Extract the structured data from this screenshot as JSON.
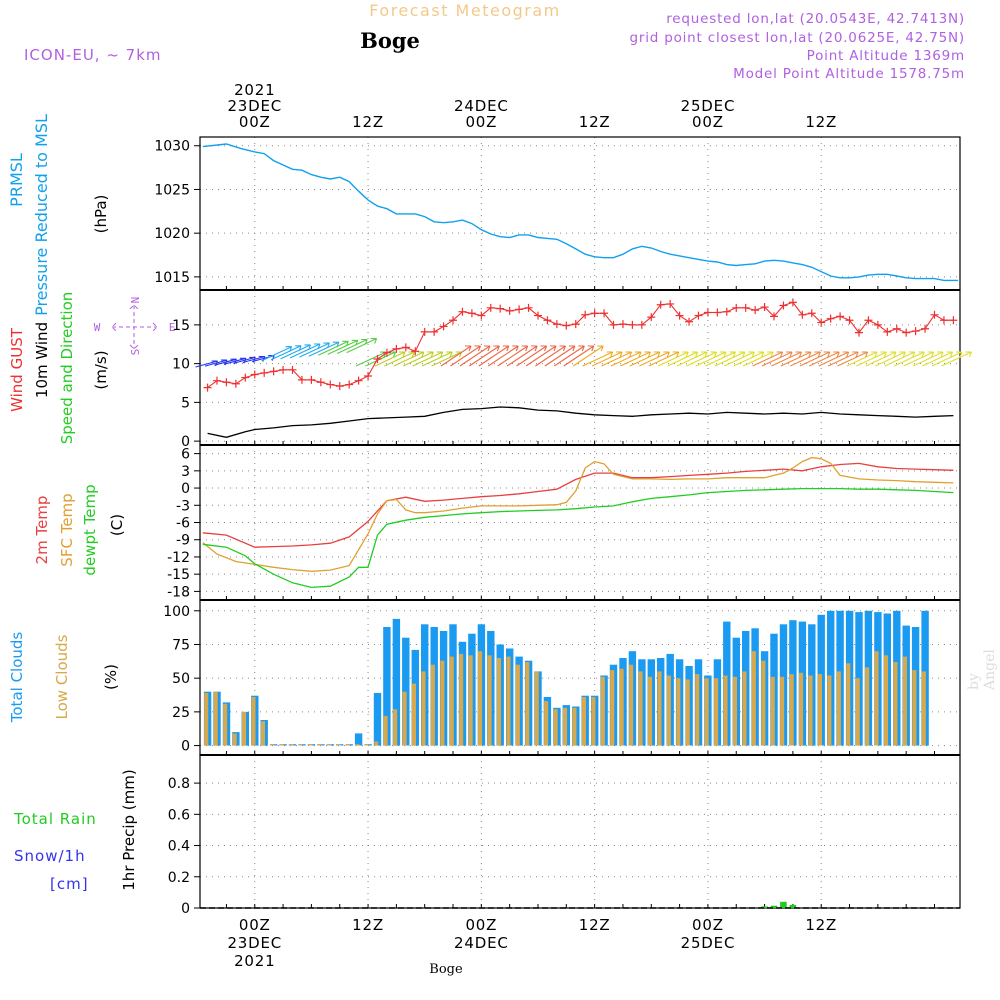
{
  "header": {
    "chart_title": "Forecast Meteogram",
    "location": "Boge",
    "model": "ICON-EU, ~ 7km",
    "requested": "requested lon,lat (20.0543E, 42.7413N)",
    "grid_point": "grid point closest lon,lat (20.0625E, 42.75N)",
    "point_altitude": "Point Altitude 1369m",
    "model_altitude": "Model Point Altitude 1578.75m",
    "watermark": "by Angel",
    "footer_location": "Boge"
  },
  "colors": {
    "pressure": "#11a0ee",
    "gust": "#ee3030",
    "wind": "#000000",
    "temp2m": "#e84040",
    "sfc": "#e0a030",
    "dewpt": "#22cc22",
    "total_cloud": "#1a9af0",
    "low_cloud": "#d8a84c",
    "rain": "#22cc22",
    "snow": "#3333ee",
    "header_title": "#f3c98a",
    "model_text": "#b060e0"
  },
  "time_axis": {
    "top_labels": [
      {
        "hour": 0,
        "lines": [
          "2021",
          "23DEC",
          "00Z"
        ]
      },
      {
        "hour": 12,
        "lines": [
          "12Z"
        ]
      },
      {
        "hour": 24,
        "lines": [
          "24DEC",
          "00Z"
        ]
      },
      {
        "hour": 36,
        "lines": [
          "12Z"
        ]
      },
      {
        "hour": 48,
        "lines": [
          "25DEC",
          "00Z"
        ]
      },
      {
        "hour": 60,
        "lines": [
          "12Z"
        ]
      }
    ],
    "bottom_labels": [
      {
        "hour": 0,
        "lines": [
          "00Z",
          "23DEC",
          "2021"
        ]
      },
      {
        "hour": 12,
        "lines": [
          "12Z"
        ]
      },
      {
        "hour": 24,
        "lines": [
          "00Z",
          "24DEC"
        ]
      },
      {
        "hour": 36,
        "lines": [
          "12Z"
        ]
      },
      {
        "hour": 48,
        "lines": [
          "00Z",
          "25DEC"
        ]
      },
      {
        "hour": 60,
        "lines": [
          "12Z"
        ]
      }
    ]
  },
  "chart_data": [
    {
      "type": "line",
      "panel": "pressure",
      "title": "PRMSL Pressure Reduced to MSL",
      "ylabel_lines": [
        "PRMSL",
        "Pressure Reduced to MSL"
      ],
      "units": "(hPa)",
      "ylim": [
        1013.5,
        1031
      ],
      "yticks": [
        1015,
        1020,
        1025,
        1030
      ],
      "x": [
        -5.5,
        -3,
        -1.5,
        0,
        1,
        2,
        3,
        4,
        5,
        6,
        7,
        8,
        9,
        10,
        11,
        12,
        13,
        14,
        15,
        16,
        17,
        18,
        19,
        20,
        21,
        22,
        23,
        24,
        25,
        26,
        27,
        28,
        29,
        30,
        31,
        32,
        33,
        34,
        35,
        36,
        37,
        38,
        39,
        40,
        41,
        42,
        43,
        44,
        45,
        46,
        47,
        48,
        49,
        50,
        51,
        52,
        53,
        54,
        55,
        56,
        57,
        58,
        59,
        60,
        61,
        62,
        63,
        64,
        65,
        66,
        67,
        68,
        69,
        70,
        71,
        72,
        73,
        74,
        74.5
      ],
      "values": [
        1029.9,
        1030.2,
        1029.7,
        1029.3,
        1029.1,
        1028.3,
        1027.8,
        1027.3,
        1027.2,
        1026.7,
        1026.4,
        1026.2,
        1026.4,
        1025.9,
        1024.8,
        1023.8,
        1023.1,
        1022.8,
        1022.2,
        1022.2,
        1022.2,
        1021.9,
        1021.3,
        1021.2,
        1021.3,
        1021.5,
        1021.1,
        1020.4,
        1019.9,
        1019.6,
        1019.5,
        1019.8,
        1019.8,
        1019.5,
        1019.4,
        1019.3,
        1018.8,
        1018.2,
        1017.6,
        1017.3,
        1017.2,
        1017.2,
        1017.6,
        1018.2,
        1018.5,
        1018.3,
        1017.9,
        1017.6,
        1017.4,
        1017.2,
        1017,
        1016.8,
        1016.7,
        1016.4,
        1016.3,
        1016.4,
        1016.5,
        1016.8,
        1016.9,
        1016.8,
        1016.6,
        1016.4,
        1016.1,
        1015.6,
        1015.1,
        1014.9,
        1014.9,
        1015,
        1015.2,
        1015.3,
        1015.3,
        1015.1,
        1014.9,
        1014.8,
        1014.8,
        1014.8,
        1014.6,
        1014.6,
        1014.6
      ]
    },
    {
      "type": "line",
      "panel": "wind",
      "title": "Wind GUST / 10m Wind Speed and Direction",
      "ylabel_lines": [
        "Wind GUST",
        "10m Wind",
        "Speed and Direction"
      ],
      "units": "(m/s)",
      "compass": [
        "N",
        "E",
        "S",
        "W"
      ],
      "ylim": [
        -0.5,
        19.5
      ],
      "yticks": [
        0,
        5,
        10,
        15
      ],
      "series": [
        {
          "name": "Wind GUST",
          "x": [
            -5,
            -4,
            -3,
            -2,
            -1,
            0,
            1,
            2,
            3,
            4,
            5,
            6,
            7,
            8,
            9,
            10,
            11,
            12,
            13,
            14,
            15,
            16,
            17,
            18,
            19,
            20,
            21,
            22,
            23,
            24,
            25,
            26,
            27,
            28,
            29,
            30,
            31,
            32,
            33,
            34,
            35,
            36,
            37,
            38,
            39,
            40,
            41,
            42,
            43,
            44,
            45,
            46,
            47,
            48,
            49,
            50,
            51,
            52,
            53,
            54,
            55,
            56,
            57,
            58,
            59,
            60,
            61,
            62,
            63,
            64,
            65,
            66,
            67,
            68,
            69,
            70,
            71,
            72,
            73,
            74
          ],
          "values": [
            6.9,
            7.8,
            7.6,
            7.4,
            8.2,
            8.6,
            8.8,
            9.0,
            9.2,
            9.2,
            7.9,
            7.9,
            7.6,
            7.3,
            7.1,
            7.3,
            7.8,
            8.4,
            10.6,
            11.4,
            11.9,
            12.1,
            11.6,
            14.1,
            14.1,
            14.8,
            15.6,
            16.7,
            16.5,
            16.2,
            17.2,
            17.1,
            16.8,
            17.0,
            17.2,
            16.2,
            15.6,
            15.1,
            14.9,
            15.1,
            16.3,
            16.5,
            16.5,
            15.0,
            15.1,
            15.0,
            15.0,
            16.0,
            17.6,
            17.7,
            16.2,
            15.4,
            16.2,
            16.6,
            16.6,
            16.7,
            17.2,
            17.2,
            16.9,
            17.3,
            16.1,
            17.5,
            17.9,
            16.3,
            16.5,
            15.3,
            15.8,
            16.1,
            15.6,
            14.0,
            15.6,
            15.0,
            14.1,
            14.5,
            14.0,
            14.2,
            14.5,
            16.3,
            15.6,
            15.6
          ]
        },
        {
          "name": "10m Wind",
          "x": [
            -5,
            -3,
            -1,
            0,
            2,
            4,
            6,
            8,
            10,
            12,
            14,
            16,
            18,
            20,
            22,
            24,
            26,
            28,
            30,
            32,
            34,
            36,
            38,
            40,
            42,
            44,
            46,
            48,
            50,
            52,
            54,
            56,
            58,
            60,
            62,
            64,
            66,
            68,
            70,
            72,
            74
          ],
          "values": [
            1.0,
            0.5,
            1.2,
            1.5,
            1.7,
            2.0,
            2.1,
            2.3,
            2.6,
            2.9,
            3.0,
            3.1,
            3.2,
            3.7,
            4.1,
            4.2,
            4.4,
            4.3,
            4.0,
            3.9,
            3.6,
            3.4,
            3.3,
            3.2,
            3.4,
            3.5,
            3.6,
            3.5,
            3.7,
            3.6,
            3.5,
            3.6,
            3.5,
            3.7,
            3.5,
            3.4,
            3.3,
            3.2,
            3.1,
            3.2,
            3.3
          ]
        }
      ]
    },
    {
      "type": "line",
      "panel": "temperature",
      "title": "2m Temp / SFC Temp / dewpt Temp",
      "ylabel_lines": [
        "2m Temp",
        "SFC Temp",
        "dewpt Temp"
      ],
      "units": "(C)",
      "ylim": [
        -19.5,
        7.5
      ],
      "yticks": [
        6,
        3,
        0,
        -3,
        -6,
        -9,
        -12,
        -15,
        -18
      ],
      "series": [
        {
          "name": "2m Temp",
          "x": [
            -5.5,
            -3,
            0,
            2,
            4,
            6,
            8,
            10,
            12,
            14,
            16,
            18,
            20,
            22,
            24,
            26,
            28,
            30,
            32,
            34,
            36,
            38,
            40,
            42,
            44,
            46,
            48,
            50,
            52,
            54,
            56,
            58,
            60,
            62,
            64,
            66,
            68,
            70,
            72,
            74
          ],
          "values": [
            -7.8,
            -8.2,
            -10.3,
            -10.2,
            -10.1,
            -9.9,
            -9.6,
            -8.5,
            -5.8,
            -2.2,
            -1.6,
            -2.3,
            -2.1,
            -1.8,
            -1.5,
            -1.3,
            -1.0,
            -0.6,
            -0.2,
            1.5,
            2.6,
            2.6,
            1.8,
            1.8,
            2.0,
            2.2,
            2.4,
            2.6,
            2.9,
            3.1,
            3.3,
            3.0,
            3.7,
            4.1,
            4.3,
            3.7,
            3.4,
            3.3,
            3.2,
            3.1
          ]
        },
        {
          "name": "SFC Temp",
          "x": [
            -5.5,
            -4,
            -2,
            0,
            2,
            4,
            6,
            8,
            10,
            12,
            13,
            14,
            15,
            16,
            17,
            18,
            20,
            22,
            24,
            26,
            28,
            30,
            32,
            33,
            34,
            35,
            36,
            37,
            38,
            40,
            42,
            44,
            46,
            48,
            50,
            52,
            54,
            55,
            56,
            57,
            58,
            59,
            60,
            61,
            62,
            64,
            66,
            68,
            70,
            72,
            74
          ],
          "values": [
            -9.5,
            -11.5,
            -12.8,
            -13.3,
            -13.8,
            -14.2,
            -14.5,
            -14.3,
            -13.5,
            -8.0,
            -4.5,
            -2.2,
            -2.0,
            -3.8,
            -4.3,
            -4.3,
            -4.0,
            -3.5,
            -3.1,
            -3.1,
            -3.1,
            -3.0,
            -2.9,
            -2.5,
            -0.5,
            3.5,
            4.6,
            4.2,
            2.4,
            1.6,
            1.6,
            1.5,
            1.6,
            1.6,
            1.8,
            1.8,
            1.8,
            2.2,
            2.6,
            3.5,
            4.6,
            5.3,
            5.1,
            4.3,
            2.2,
            1.6,
            1.4,
            1.3,
            1.1,
            1.0,
            0.9
          ]
        },
        {
          "name": "dewpt Temp",
          "x": [
            -5.5,
            -3,
            -1,
            0,
            2,
            4,
            6,
            8,
            10,
            11,
            12,
            13,
            14,
            16,
            18,
            20,
            22,
            24,
            26,
            28,
            30,
            32,
            34,
            36,
            38,
            40,
            42,
            44,
            46,
            48,
            50,
            52,
            54,
            56,
            58,
            60,
            62,
            64,
            66,
            68,
            70,
            72,
            74
          ],
          "values": [
            -9.8,
            -10.3,
            -11.8,
            -13.2,
            -15.0,
            -16.5,
            -17.3,
            -17.1,
            -15.5,
            -13.8,
            -13.8,
            -8.2,
            -6.3,
            -5.6,
            -5.1,
            -4.8,
            -4.5,
            -4.3,
            -4.1,
            -4.0,
            -3.9,
            -3.8,
            -3.6,
            -3.3,
            -3.1,
            -2.4,
            -1.8,
            -1.5,
            -1.2,
            -0.8,
            -0.6,
            -0.4,
            -0.3,
            -0.2,
            -0.1,
            -0.1,
            -0.1,
            -0.2,
            -0.2,
            -0.3,
            -0.4,
            -0.6,
            -0.8
          ]
        }
      ]
    },
    {
      "type": "bar",
      "panel": "clouds",
      "title": "Total Clouds / Low Clouds",
      "ylabel_lines": [
        "Total Clouds",
        "Low Clouds"
      ],
      "units": "(%)",
      "ylim": [
        -7,
        108
      ],
      "yticks": [
        0,
        25,
        50,
        75,
        100
      ],
      "x": [
        -5,
        -4,
        -3,
        -2,
        -1,
        0,
        1,
        2,
        3,
        4,
        5,
        6,
        7,
        8,
        9,
        10,
        11,
        12,
        13,
        14,
        15,
        16,
        17,
        18,
        19,
        20,
        21,
        22,
        23,
        24,
        25,
        26,
        27,
        28,
        29,
        30,
        31,
        32,
        33,
        34,
        35,
        36,
        37,
        38,
        39,
        40,
        41,
        42,
        43,
        44,
        45,
        46,
        47,
        48,
        49,
        50,
        51,
        52,
        53,
        54,
        55,
        56,
        57,
        58,
        59,
        60,
        61,
        62,
        63,
        64,
        65,
        66,
        67,
        68,
        69,
        70,
        71,
        72,
        73,
        74
      ],
      "series": [
        {
          "name": "Total Clouds",
          "values": [
            40,
            40,
            32,
            10,
            25,
            37,
            19,
            1,
            1,
            1,
            1,
            1,
            1,
            1,
            1,
            1,
            9,
            1,
            39,
            88,
            94,
            80,
            71,
            90,
            88,
            85,
            90,
            77,
            83,
            90,
            85,
            75,
            72,
            66,
            63,
            55,
            36,
            28,
            30,
            29,
            37,
            37,
            52,
            60,
            65,
            70,
            64,
            64,
            65,
            68,
            64,
            59,
            64,
            52,
            64,
            92,
            80,
            85,
            87,
            70,
            83,
            90,
            93,
            92,
            90,
            97,
            100,
            100,
            100,
            99,
            100,
            99,
            98,
            100,
            89,
            88,
            100,
            0,
            0,
            0
          ],
          "note": "values after hour 71 are off-plot; last drawn bar at hour 71"
        },
        {
          "name": "Low Clouds",
          "values": [
            39,
            40,
            31,
            9,
            25,
            36,
            18,
            1,
            1,
            1,
            1,
            1,
            1,
            1,
            1,
            1,
            1,
            1,
            3,
            22,
            27,
            40,
            46,
            55,
            60,
            63,
            66,
            68,
            67,
            70,
            67,
            65,
            66,
            60,
            62,
            55,
            33,
            27,
            28,
            28,
            36,
            36,
            51,
            56,
            57,
            60,
            55,
            51,
            55,
            52,
            50,
            49,
            53,
            50,
            50,
            52,
            51,
            55,
            70,
            63,
            51,
            51,
            53,
            54,
            52,
            53,
            52,
            55,
            61,
            50,
            58,
            70,
            67,
            62,
            66,
            56,
            55,
            0,
            0,
            0
          ]
        }
      ],
      "last_bar_hour": 71
    },
    {
      "type": "bar",
      "panel": "precip",
      "title": "Total Rain / Snow/1h",
      "ylabel_lines": [
        "1hr Precip (mm)"
      ],
      "legend": [
        "Total Rain",
        "Snow/1h",
        "[cm]"
      ],
      "ylim": [
        0,
        0.98
      ],
      "yticks": [
        0,
        0.2,
        0.4,
        0.6,
        0.8
      ],
      "series": [
        {
          "name": "Total Rain",
          "x": [
            54,
            55,
            56,
            57
          ],
          "values": [
            0.01,
            0.015,
            0.04,
            0.02
          ]
        },
        {
          "name": "Snow/1h",
          "x": [],
          "values": []
        }
      ]
    }
  ]
}
